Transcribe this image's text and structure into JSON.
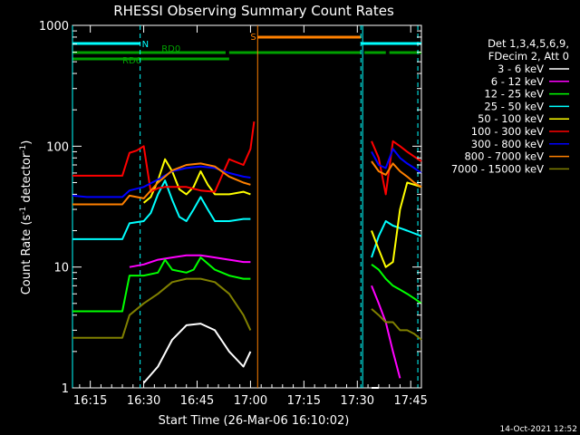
{
  "page": {
    "title": "RHESSI Observing Summary Count Rates",
    "timestamp": "14-Oct-2021 12:52"
  },
  "chart_data": {
    "type": "line",
    "title": "RHESSI Observing Summary Count Rates",
    "xlabel": "Start Time (26-Mar-06 16:10:02)",
    "ylabel": "Count Rate (s⁻¹ detector⁻¹)",
    "yscale": "log",
    "ylim": [
      1,
      1000
    ],
    "xlim_minutes": [
      0,
      98
    ],
    "x_ticks": [
      {
        "label": "16:15",
        "min": 5
      },
      {
        "label": "16:30",
        "min": 20
      },
      {
        "label": "16:45",
        "min": 35
      },
      {
        "label": "17:00",
        "min": 50
      },
      {
        "label": "17:15",
        "min": 65
      },
      {
        "label": "17:30",
        "min": 80
      },
      {
        "label": "17:45",
        "min": 95
      }
    ],
    "y_ticks": [
      {
        "label": "1",
        "value": 1
      },
      {
        "label": "10",
        "value": 10
      },
      {
        "label": "100",
        "value": 100
      },
      {
        "label": "1000",
        "value": 1000
      }
    ],
    "legend_header": [
      "Det 1,3,4,5,6,9,",
      "FDecim 2, Att 0"
    ],
    "legend_position": "right",
    "series": [
      {
        "name": "3 - 6 keV",
        "color": "#ffffff",
        "x": [
          0,
          18,
          20,
          24,
          28,
          32,
          36,
          40,
          44,
          48,
          50,
          52,
          82,
          84,
          86,
          88,
          90,
          92,
          94,
          96,
          98
        ],
        "y": [
          null,
          null,
          1.1,
          1.5,
          2.5,
          3.3,
          3.4,
          3.0,
          2.0,
          1.5,
          2.0,
          null,
          null,
          1.0,
          1.0,
          null,
          null,
          null,
          null,
          null,
          null
        ]
      },
      {
        "name": "6 - 12 keV",
        "color": "#ff00ff",
        "x": [
          0,
          14,
          16,
          20,
          24,
          28,
          32,
          36,
          40,
          44,
          48,
          50,
          52,
          82,
          84,
          86,
          88,
          90,
          92,
          94,
          96,
          98
        ],
        "y": [
          null,
          null,
          10.0,
          10.5,
          11.5,
          12.0,
          12.5,
          12.5,
          12.0,
          11.5,
          11.0,
          11.0,
          null,
          null,
          7.0,
          5.0,
          3.5,
          2.0,
          1.2,
          null,
          null,
          null
        ]
      },
      {
        "name": "12 - 25 keV",
        "color": "#00ff00",
        "x": [
          0,
          4,
          8,
          12,
          14,
          16,
          20,
          24,
          26,
          28,
          32,
          34,
          36,
          40,
          44,
          48,
          50,
          52,
          82,
          84,
          86,
          88,
          90,
          92,
          94,
          96,
          98
        ],
        "y": [
          4.3,
          4.3,
          4.3,
          4.3,
          4.3,
          8.5,
          8.5,
          9.0,
          11.5,
          9.5,
          9.0,
          9.5,
          12.0,
          9.5,
          8.5,
          8.0,
          8.0,
          null,
          null,
          10.5,
          9.5,
          8.0,
          7.0,
          6.5,
          6.0,
          5.5,
          5.0
        ]
      },
      {
        "name": "25 - 50 keV",
        "color": "#00ffff",
        "x": [
          0,
          4,
          8,
          12,
          14,
          16,
          20,
          22,
          24,
          26,
          28,
          30,
          32,
          34,
          36,
          38,
          40,
          44,
          48,
          50,
          52,
          82,
          84,
          86,
          88,
          90,
          92,
          94,
          96,
          98
        ],
        "y": [
          17,
          17,
          17,
          17,
          17,
          23,
          24,
          28,
          40,
          52,
          36,
          26,
          24,
          30,
          38,
          30,
          24,
          24,
          25,
          25,
          null,
          null,
          12,
          18,
          24,
          22,
          21,
          20,
          19,
          18
        ]
      },
      {
        "name": "50 - 100 keV",
        "color": "#ffff00",
        "x": [
          0,
          18,
          20,
          22,
          24,
          26,
          28,
          30,
          32,
          34,
          36,
          38,
          40,
          44,
          48,
          50,
          52,
          82,
          84,
          86,
          88,
          90,
          92,
          94,
          96,
          98
        ],
        "y": [
          null,
          null,
          34,
          38,
          52,
          78,
          62,
          44,
          40,
          46,
          62,
          48,
          40,
          40,
          42,
          40,
          null,
          null,
          20,
          14,
          10,
          11,
          30,
          50,
          48,
          46
        ]
      },
      {
        "name": "100 - 300 keV",
        "color": "#ff0000",
        "x": [
          0,
          4,
          8,
          12,
          14,
          16,
          18,
          20,
          22,
          24,
          26,
          28,
          32,
          36,
          40,
          44,
          48,
          50,
          51,
          52,
          82,
          84,
          86,
          88,
          90,
          92,
          94,
          96,
          98
        ],
        "y": [
          57,
          57,
          57,
          57,
          57,
          88,
          92,
          100,
          42,
          45,
          46,
          46,
          46,
          43,
          42,
          78,
          70,
          95,
          160,
          null,
          null,
          110,
          80,
          40,
          110,
          100,
          90,
          82,
          75
        ]
      },
      {
        "name": "300 - 800 keV",
        "color": "#0000ff",
        "x": [
          0,
          4,
          8,
          12,
          14,
          16,
          20,
          24,
          28,
          32,
          36,
          40,
          44,
          48,
          50,
          52,
          82,
          84,
          86,
          88,
          90,
          92,
          94,
          96,
          98
        ],
        "y": [
          39,
          38,
          38,
          38,
          38,
          43,
          46,
          53,
          62,
          66,
          68,
          66,
          60,
          56,
          55,
          null,
          null,
          90,
          70,
          66,
          95,
          80,
          72,
          66,
          60
        ]
      },
      {
        "name": "800 - 7000 keV",
        "color": "#ff8000",
        "x": [
          0,
          4,
          8,
          12,
          14,
          16,
          20,
          24,
          28,
          32,
          36,
          40,
          44,
          48,
          50,
          52,
          82,
          84,
          86,
          88,
          90,
          92,
          94,
          96,
          98
        ],
        "y": [
          33,
          33,
          33,
          33,
          33,
          39,
          37,
          50,
          63,
          70,
          72,
          68,
          56,
          50,
          48,
          null,
          null,
          75,
          62,
          58,
          72,
          62,
          56,
          50,
          46
        ]
      },
      {
        "name": "7000 - 15000 keV",
        "color": "#808000",
        "x": [
          0,
          4,
          8,
          12,
          14,
          16,
          20,
          24,
          28,
          32,
          36,
          40,
          44,
          48,
          50,
          52,
          82,
          84,
          86,
          88,
          90,
          92,
          94,
          96,
          98
        ],
        "y": [
          2.6,
          2.6,
          2.6,
          2.6,
          2.6,
          4.0,
          5.0,
          6.0,
          7.5,
          8.0,
          8.0,
          7.5,
          6.0,
          4.0,
          3.0,
          null,
          null,
          4.5,
          4.0,
          3.5,
          3.5,
          3.0,
          3.0,
          2.8,
          2.5
        ]
      }
    ],
    "annotations": [
      {
        "text": "N",
        "color": "#00ffff"
      },
      {
        "text": "RD0",
        "color": "#00a000"
      },
      {
        "text": "RD6",
        "color": "#00a000"
      },
      {
        "text": "S",
        "color": "#ff8000"
      }
    ],
    "night_intervals_min": [
      [
        0,
        19
      ],
      [
        81,
        98
      ]
    ],
    "saa_interval_min": [
      [
        52,
        81
      ]
    ],
    "attenuator_bars": [
      {
        "level": "RD0",
        "intervals": [
          [
            0,
            43
          ],
          [
            44,
            81
          ],
          [
            82,
            88
          ],
          [
            89,
            98
          ]
        ]
      },
      {
        "level": "RD6",
        "intervals": [
          [
            0,
            20
          ],
          [
            20,
            44
          ]
        ]
      }
    ],
    "vlines_min": [
      {
        "x": 0,
        "color": "#00ffff",
        "style": "solid"
      },
      {
        "x": 19,
        "color": "#00ffff",
        "style": "dashed"
      },
      {
        "x": 52,
        "color": "#ff8000",
        "style": "solid"
      },
      {
        "x": 81,
        "color": "#00ffff",
        "style": "dashed"
      },
      {
        "x": 81.5,
        "color": "#00ffff",
        "style": "solid"
      },
      {
        "x": 97,
        "color": "#00ffff",
        "style": "dashed"
      }
    ]
  }
}
